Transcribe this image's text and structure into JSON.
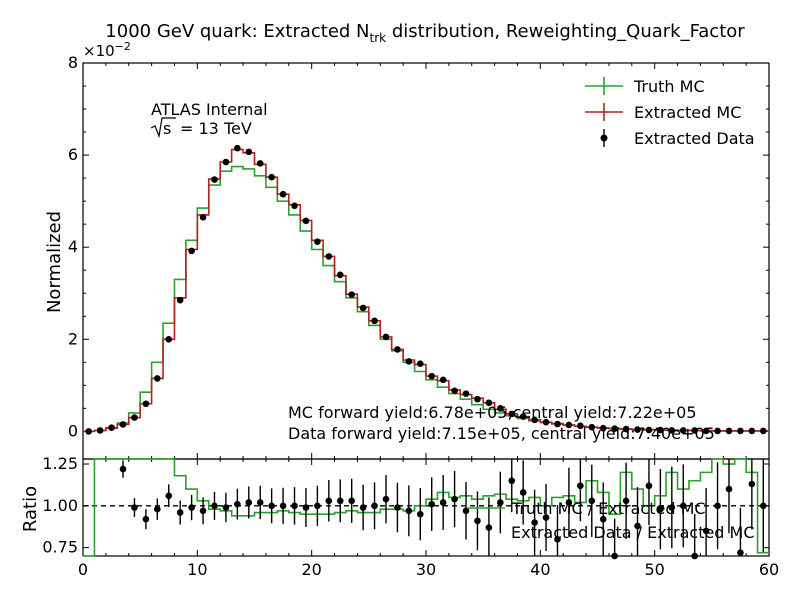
{
  "chart_data": [
    {
      "type": "step",
      "title": "1000 GeV quark: Extracted N",
      "title_sub": "trk",
      "title_rest": " distribution, Reweighting_Quark_Factor",
      "ylabel": "Normalized",
      "y_multiplier": "×10",
      "y_multiplier_exp": "−2",
      "xlim": [
        0,
        60
      ],
      "ylim": [
        -0.6,
        8
      ],
      "yticks": [
        0,
        2,
        4,
        6,
        8
      ],
      "ytick_labels": [
        "0",
        "2",
        "4",
        "6",
        "8"
      ],
      "annotations": {
        "atlas": "ATLAS Internal",
        "energy_s": "s",
        "energy_rest": "= 13 TeV",
        "mc_yield": "MC forward yield:6.78e+05,central yield:7.22e+05",
        "data_yield": "Data forward yield:7.15e+05, central yield:7.40e+05"
      },
      "legend": {
        "position": "top-right",
        "entries": [
          "Truth MC",
          "Extracted MC",
          "Extracted Data"
        ]
      },
      "x": [
        0,
        1,
        2,
        3,
        4,
        5,
        6,
        7,
        8,
        9,
        10,
        11,
        12,
        13,
        14,
        15,
        16,
        17,
        18,
        19,
        20,
        21,
        22,
        23,
        24,
        25,
        26,
        27,
        28,
        29,
        30,
        31,
        32,
        33,
        34,
        35,
        36,
        37,
        38,
        39,
        40,
        41,
        42,
        43,
        44,
        45,
        46,
        47,
        48,
        49,
        50,
        51,
        52,
        53,
        54,
        55,
        56,
        57,
        58,
        59
      ],
      "series": [
        {
          "name": "Truth MC",
          "color": "#2ca02c",
          "values": [
            0.0,
            0.02,
            0.08,
            0.18,
            0.4,
            0.85,
            1.5,
            2.35,
            3.3,
            4.15,
            4.85,
            5.35,
            5.65,
            5.75,
            5.7,
            5.55,
            5.3,
            5.0,
            4.7,
            4.35,
            3.95,
            3.6,
            3.25,
            2.9,
            2.6,
            2.3,
            2.0,
            1.75,
            1.5,
            1.3,
            1.12,
            0.96,
            0.82,
            0.7,
            0.58,
            0.48,
            0.4,
            0.34,
            0.28,
            0.23,
            0.19,
            0.16,
            0.13,
            0.11,
            0.09,
            0.08,
            0.06,
            0.05,
            0.04,
            0.04,
            0.03,
            0.03,
            0.02,
            0.02,
            0.02,
            0.01,
            0.01,
            0.01,
            0.01,
            0.01
          ]
        },
        {
          "name": "Extracted MC",
          "color": "#b22222",
          "values": [
            0.0,
            0.02,
            0.07,
            0.15,
            0.3,
            0.6,
            1.15,
            2.0,
            2.9,
            3.95,
            4.7,
            5.48,
            5.85,
            6.12,
            6.05,
            5.8,
            5.52,
            5.15,
            4.92,
            4.58,
            4.15,
            3.8,
            3.38,
            2.98,
            2.7,
            2.4,
            2.05,
            1.78,
            1.55,
            1.45,
            1.2,
            1.1,
            0.9,
            0.8,
            0.72,
            0.62,
            0.48,
            0.38,
            0.32,
            0.25,
            0.2,
            0.17,
            0.14,
            0.11,
            0.09,
            0.07,
            0.06,
            0.05,
            0.04,
            0.03,
            0.03,
            0.02,
            0.02,
            0.02,
            0.01,
            0.01,
            0.01,
            0.01,
            0.01,
            0.01
          ]
        },
        {
          "name": "Extracted Data",
          "color": "#000000",
          "values": [
            0.0,
            0.02,
            0.08,
            0.15,
            0.3,
            0.6,
            1.15,
            2.0,
            2.85,
            3.92,
            4.65,
            5.47,
            5.85,
            6.15,
            6.07,
            5.82,
            5.52,
            5.15,
            4.9,
            4.57,
            4.12,
            3.8,
            3.4,
            2.97,
            2.68,
            2.4,
            2.05,
            1.78,
            1.52,
            1.47,
            1.2,
            1.12,
            0.88,
            0.82,
            0.7,
            0.62,
            0.5,
            0.38,
            0.32,
            0.25,
            0.2,
            0.16,
            0.14,
            0.12,
            0.09,
            0.07,
            0.06,
            0.05,
            0.04,
            0.03,
            0.03,
            0.02,
            0.02,
            0.02,
            0.01,
            0.01,
            0.01,
            0.01,
            0.01,
            0.01
          ]
        }
      ]
    },
    {
      "type": "step",
      "xlabel": "",
      "ylabel": "Ratio",
      "xlim": [
        0,
        60
      ],
      "ylim": [
        0.7,
        1.28
      ],
      "yticks": [
        0.75,
        1.0,
        1.25
      ],
      "ytick_labels": [
        "0.75",
        "1.00",
        "1.25"
      ],
      "xticks": [
        0,
        10,
        20,
        30,
        40,
        50,
        60
      ],
      "xtick_labels": [
        "0",
        "10",
        "20",
        "30",
        "40",
        "50",
        "60"
      ],
      "reference_line": 1.0,
      "legend": {
        "position": "right",
        "entries": [
          "Truth MC / Extracted MC",
          "Extracted Data / Extracted MC"
        ]
      },
      "x": [
        0,
        1,
        2,
        3,
        4,
        5,
        6,
        7,
        8,
        9,
        10,
        11,
        12,
        13,
        14,
        15,
        16,
        17,
        18,
        19,
        20,
        21,
        22,
        23,
        24,
        25,
        26,
        27,
        28,
        29,
        30,
        31,
        32,
        33,
        34,
        35,
        36,
        37,
        38,
        39,
        40,
        41,
        42,
        43,
        44,
        45,
        46,
        47,
        48,
        49,
        50,
        51,
        52,
        53,
        54,
        55,
        56,
        57,
        58,
        59
      ],
      "series": [
        {
          "name": "Truth MC / Extracted MC",
          "color": "#2ca02c",
          "values": [
            0.65,
            1.4,
            1.4,
            1.35,
            1.4,
            1.4,
            1.3,
            1.28,
            1.18,
            1.1,
            1.03,
            0.98,
            0.97,
            0.94,
            0.94,
            0.96,
            0.96,
            0.97,
            0.96,
            0.95,
            0.95,
            0.95,
            0.96,
            0.97,
            0.96,
            0.96,
            0.98,
            0.98,
            0.97,
            1.0,
            1.04,
            1.08,
            1.05,
            1.06,
            1.04,
            1.06,
            1.07,
            1.04,
            1.03,
            1.05,
            1.0,
            1.05,
            1.06,
            1.02,
            1.15,
            1.08,
            0.95,
            1.2,
            1.1,
            1.0,
            1.06,
            1.2,
            1.1,
            1.15,
            1.2,
            1.3,
            1.25,
            1.3,
            1.2,
            0.72
          ]
        },
        {
          "name": "Extracted Data / Extracted MC",
          "color": "#000000",
          "values": [
            null,
            null,
            null,
            1.22,
            0.99,
            0.92,
            0.98,
            1.06,
            0.96,
            0.99,
            0.97,
            1.0,
            0.99,
            1.01,
            1.02,
            1.02,
            1.0,
            1.0,
            1.0,
            0.99,
            1.0,
            1.03,
            1.03,
            1.03,
            0.99,
            1.0,
            1.04,
            0.99,
            0.97,
            0.95,
            1.01,
            1.02,
            1.04,
            0.97,
            0.91,
            0.87,
            1.02,
            1.15,
            1.08,
            0.9,
            0.93,
            0.8,
            1.02,
            1.12,
            1.03,
            0.92,
            0.7,
            1.03,
            0.88,
            1.12,
            0.98,
            0.99,
            1.0,
            0.7,
            0.85,
            1.0,
            1.1,
            0.72,
            1.13,
            1.0
          ]
        }
      ]
    }
  ]
}
